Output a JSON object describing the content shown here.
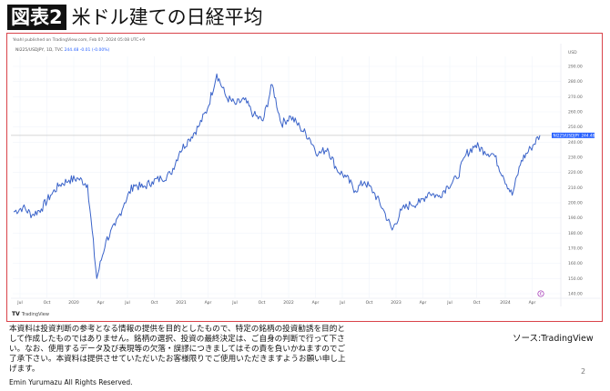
{
  "header": {
    "badge": "図表2",
    "title": "米ドル建ての日経平均"
  },
  "chart_meta": {
    "published": "Yeahl published on TradingView.com, Feb 07, 2024 05:08 UTC+9",
    "symbol_line": "NI225/USDJPY, 1D, TVC",
    "last_value": "244.48",
    "change": "-0.01 (-0.00%)",
    "currency": "USD",
    "price_tag_label": "NI225/USDJPY",
    "price_tag_value": "244.48",
    "watermark": "TradingView",
    "accent_color": "#2962ff",
    "line_color": "#3a63c9",
    "frame_color": "#d9434a"
  },
  "chart_data": {
    "type": "line",
    "title": "米ドル建ての日経平均",
    "series": [
      {
        "name": "NI225/USDJPY",
        "x": [
          "2019-06",
          "2019-07",
          "2019-08",
          "2019-09",
          "2019-10",
          "2019-11",
          "2019-12",
          "2020-01",
          "2020-02",
          "2020-03",
          "2020-03-late",
          "2020-04",
          "2020-05",
          "2020-06",
          "2020-07",
          "2020-08",
          "2020-09",
          "2020-10",
          "2020-11",
          "2020-12",
          "2021-01",
          "2021-02",
          "2021-03",
          "2021-04",
          "2021-05",
          "2021-06",
          "2021-07",
          "2021-08",
          "2021-09",
          "2021-10",
          "2021-11",
          "2021-12",
          "2022-01",
          "2022-02",
          "2022-03",
          "2022-04",
          "2022-05",
          "2022-06",
          "2022-07",
          "2022-08",
          "2022-09",
          "2022-10",
          "2022-11",
          "2022-12",
          "2023-01",
          "2023-02",
          "2023-03",
          "2023-04",
          "2023-05",
          "2023-06",
          "2023-07",
          "2023-08",
          "2023-09",
          "2023-10",
          "2023-11",
          "2023-12",
          "2024-01",
          "2024-02"
        ],
        "values": [
          194,
          197,
          192,
          196,
          205,
          212,
          215,
          216,
          212,
          150,
          175,
          185,
          200,
          212,
          210,
          214,
          216,
          219,
          234,
          242,
          250,
          262,
          285,
          270,
          265,
          268,
          258,
          254,
          278,
          252,
          257,
          250,
          243,
          232,
          236,
          222,
          217,
          208,
          214,
          207,
          196,
          182,
          195,
          199,
          200,
          207,
          204,
          211,
          216,
          232,
          238,
          234,
          232,
          218,
          205,
          228,
          236,
          244.5
        ]
      }
    ],
    "xlabel": "",
    "ylabel": "USD",
    "ylim": [
      140,
      290
    ],
    "y_ticks": [
      "290.00",
      "280.00",
      "270.00",
      "260.00",
      "250.00",
      "240.00",
      "230.00",
      "220.00",
      "210.00",
      "200.00",
      "190.00",
      "180.00",
      "170.00",
      "160.00",
      "150.00",
      "140.00"
    ],
    "x_ticks": [
      "Jul",
      "Oct",
      "2020",
      "Apr",
      "Jul",
      "Oct",
      "2021",
      "Apr",
      "Jul",
      "Oct",
      "2022",
      "Apr",
      "Jul",
      "Oct",
      "2023",
      "Apr",
      "Jul",
      "Oct",
      "2024",
      "Apr"
    ],
    "last_price_line": 244.48,
    "grid": true,
    "legend_position": "top-left"
  },
  "footer": {
    "disclaimer": "本資料は投資判断の参考となる情報の提供を目的としたもので、特定の銘柄の投資勧誘を目的として作成したものではありません。銘柄の選択、投資の最終決定は、ご自身の判断で行って下さい。なお、使用するデータ及び表現等の欠落・誤謬につきましてはその責を負いかねますのでご了承下さい。本資料は提供させていただいたお客様限りでご使用いただきますようお願い申し上げます。",
    "copyright": "Emin Yurumazu All Rights Reserved.",
    "source": "ソース:TradingView",
    "page_number": "2"
  }
}
